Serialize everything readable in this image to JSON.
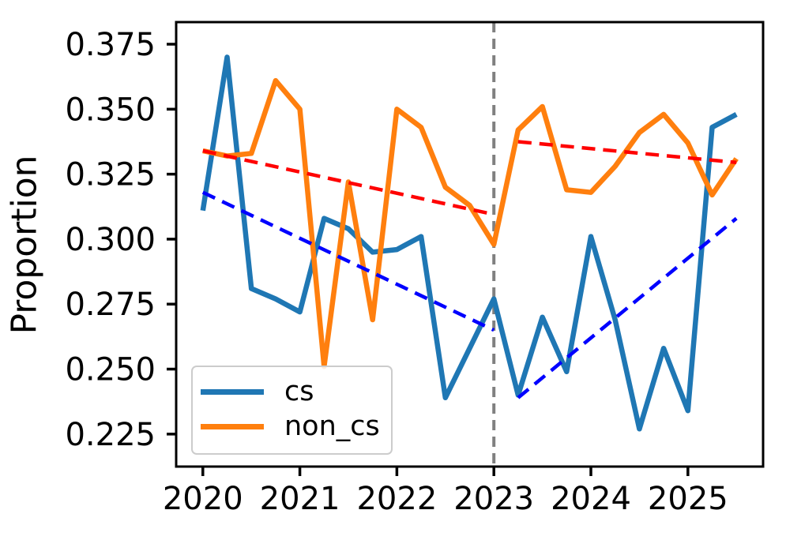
{
  "chart_data": {
    "type": "line",
    "title": "",
    "xlabel": "",
    "ylabel": "Proportion",
    "grid": false,
    "background": "#ffffff",
    "axis_color": "#000000",
    "xlim": [
      2019.725,
      2025.775
    ],
    "ylim": [
      0.2125,
      0.3835
    ],
    "x_ticks": [
      2020,
      2021,
      2022,
      2023,
      2024,
      2025
    ],
    "x_tick_labels": [
      "2020",
      "2021",
      "2022",
      "2023",
      "2024",
      "2025"
    ],
    "y_ticks": [
      0.225,
      0.25,
      0.275,
      0.3,
      0.325,
      0.35,
      0.375
    ],
    "y_tick_labels": [
      "0.225",
      "0.250",
      "0.275",
      "0.300",
      "0.325",
      "0.350",
      "0.375"
    ],
    "x": [
      2020.0,
      2020.25,
      2020.5,
      2020.75,
      2021.0,
      2021.25,
      2021.5,
      2021.75,
      2022.0,
      2022.25,
      2022.5,
      2022.75,
      2023.0,
      2023.25,
      2023.5,
      2023.75,
      2024.0,
      2024.25,
      2024.5,
      2024.75,
      2025.0,
      2025.25,
      2025.5
    ],
    "series": [
      {
        "name": "cs",
        "color": "#1f77b4",
        "style": "solid",
        "values": [
          0.311,
          0.37,
          0.281,
          0.277,
          0.272,
          0.308,
          0.304,
          0.295,
          0.296,
          0.301,
          0.239,
          0.258,
          0.277,
          0.24,
          0.27,
          0.249,
          0.301,
          0.269,
          0.227,
          0.258,
          0.234,
          0.343,
          0.348
        ]
      },
      {
        "name": "non_cs",
        "color": "#ff7f0e",
        "style": "solid",
        "values": [
          0.334,
          0.332,
          0.333,
          0.361,
          0.35,
          0.251,
          0.322,
          0.269,
          0.35,
          0.343,
          0.32,
          0.313,
          0.298,
          0.342,
          0.351,
          0.319,
          0.318,
          0.328,
          0.341,
          0.348,
          0.337,
          0.317,
          0.331
        ]
      }
    ],
    "trend_lines": [
      {
        "name": "non_cs-trend-pre-2023",
        "color": "#ff0000",
        "style": "dashed",
        "x": [
          2020.0,
          2023.0
        ],
        "y": [
          0.334,
          0.3095
        ]
      },
      {
        "name": "cs-trend-pre-2023",
        "color": "#0000ff",
        "style": "dashed",
        "x": [
          2020.0,
          2023.0
        ],
        "y": [
          0.318,
          0.265
        ]
      },
      {
        "name": "non_cs-trend-post-2023",
        "color": "#ff0000",
        "style": "dashed",
        "x": [
          2023.25,
          2025.5
        ],
        "y": [
          0.3375,
          0.3295
        ]
      },
      {
        "name": "cs-trend-post-2023",
        "color": "#0000ff",
        "style": "dashed",
        "x": [
          2023.25,
          2025.5
        ],
        "y": [
          0.239,
          0.308
        ]
      }
    ],
    "vline": {
      "x": 2023.0,
      "color": "#808080",
      "style": "dashed"
    },
    "legend": {
      "position": "lower left",
      "entries": [
        {
          "label": "cs",
          "color": "#1f77b4"
        },
        {
          "label": "non_cs",
          "color": "#ff7f0e"
        }
      ]
    }
  }
}
